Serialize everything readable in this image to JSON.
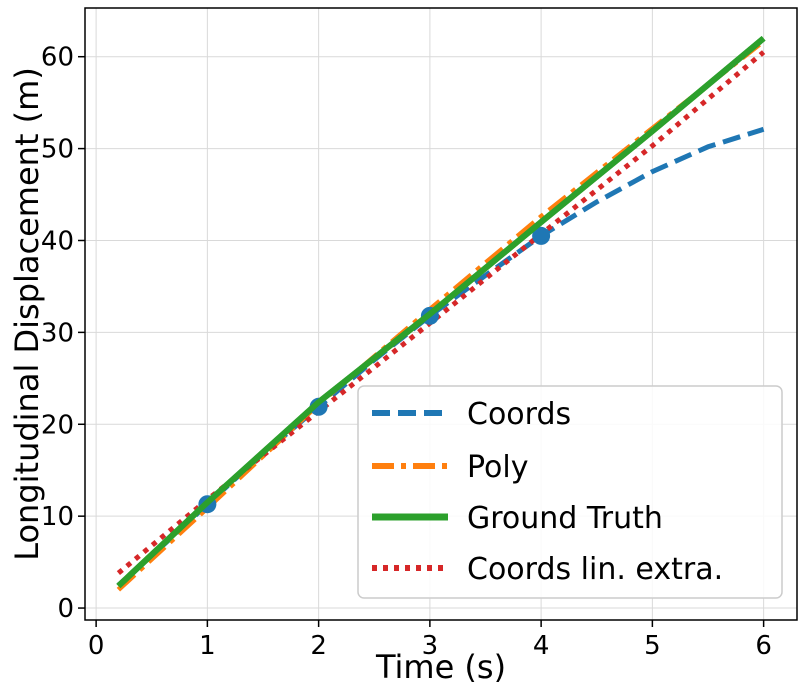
{
  "chart_data": {
    "type": "line",
    "title": "",
    "xlabel": "Time (s)",
    "ylabel": "Longitudinal Displacement (m)",
    "xlim": [
      -0.1,
      6.3
    ],
    "ylim": [
      -1.3,
      65.3
    ],
    "grid": true,
    "legend_position": "lower-right",
    "x_ticks": [
      "0",
      "1",
      "2",
      "3",
      "4",
      "5",
      "6"
    ],
    "y_ticks": [
      "0",
      "10",
      "20",
      "30",
      "40",
      "50",
      "60"
    ],
    "x_tick_values": [
      0,
      1,
      2,
      3,
      4,
      5,
      6
    ],
    "y_tick_values": [
      0,
      10,
      20,
      30,
      40,
      50,
      60
    ],
    "markers": {
      "color": "#1f77b4",
      "points": [
        [
          1,
          11.3
        ],
        [
          2,
          21.9
        ],
        [
          3,
          31.8
        ],
        [
          4,
          40.5
        ]
      ]
    },
    "series": [
      {
        "name": "Coords",
        "color": "#1f77b4",
        "style": "dashed",
        "x": [
          0.2,
          0.5,
          1.0,
          1.5,
          2.0,
          2.5,
          3.0,
          3.5,
          4.0,
          4.5,
          5.0,
          5.5,
          6.0
        ],
        "y": [
          2.5,
          5.7,
          11.3,
          16.8,
          21.9,
          27.0,
          31.8,
          36.2,
          40.5,
          44.2,
          47.5,
          50.2,
          52.1
        ]
      },
      {
        "name": "Poly",
        "color": "#ff7f0e",
        "style": "dashdot",
        "x": [
          0.2,
          1.0,
          2.0,
          3.0,
          4.0,
          5.0,
          6.0
        ],
        "y": [
          2.0,
          10.9,
          22.2,
          32.5,
          42.6,
          52.2,
          61.7
        ]
      },
      {
        "name": "Ground Truth",
        "color": "#2ca02c",
        "style": "solid",
        "x": [
          0.2,
          1.0,
          2.0,
          3.0,
          4.0,
          5.0,
          6.0
        ],
        "y": [
          2.4,
          11.5,
          22.4,
          32.0,
          42.0,
          51.9,
          62.0
        ]
      },
      {
        "name": "Coords lin. extra.",
        "color": "#d62728",
        "style": "dotted",
        "x": [
          0.2,
          1.0,
          2.0,
          3.0,
          4.0,
          5.0,
          6.0
        ],
        "y": [
          3.8,
          11.8,
          21.4,
          31.0,
          40.7,
          50.3,
          60.5
        ]
      }
    ]
  }
}
